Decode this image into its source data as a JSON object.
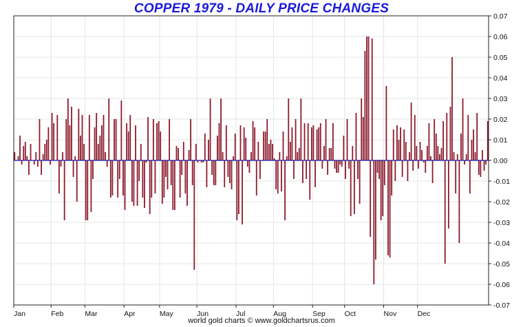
{
  "chart_data": {
    "type": "bar",
    "title": "COPPER 1979 - DAILY PRICE CHANGES",
    "credit": "world gold charts © www.goldchartsrus.com",
    "xlabel": "",
    "ylabel": "",
    "ylim": [
      -0.07,
      0.07
    ],
    "y_ticks": [
      "0.07",
      "0.06",
      "0.05",
      "0.04",
      "0.03",
      "0.02",
      "0.01",
      "0.00",
      "-0.01",
      "-0.02",
      "-0.03",
      "-0.04",
      "-0.05",
      "-0.06",
      "-0.07"
    ],
    "y_tick_values": [
      0.07,
      0.06,
      0.05,
      0.04,
      0.03,
      0.02,
      0.01,
      0.0,
      -0.01,
      -0.02,
      -0.03,
      -0.04,
      -0.05,
      -0.06,
      -0.07
    ],
    "x_ticks": [
      "Jan",
      "Feb",
      "Mar",
      "Apr",
      "May",
      "Jun",
      "Jul",
      "Aug",
      "Sep",
      "Oct",
      "Nov",
      "Dec"
    ],
    "x_tick_positions": [
      0,
      21,
      40,
      62,
      82,
      103,
      125,
      146,
      168,
      186,
      208,
      227
    ],
    "grid": true,
    "colors": {
      "bar": "#8b1a2b",
      "zero_line": "#1a1aa8",
      "title": "#1a1adb",
      "grid": "#e4e4e4"
    },
    "series": [
      {
        "values": [
          0.004,
          0.0,
          0.002,
          0.012,
          -0.002,
          0.007,
          0.009,
          0.002,
          -0.007,
          0.008,
          0.0,
          -0.002,
          0.004,
          -0.003,
          0.02,
          -0.007,
          0.003,
          0.008,
          0.01,
          0.016,
          -0.002,
          0.023,
          0.018,
          0.0,
          0.022,
          -0.016,
          -0.003,
          0.004,
          -0.029,
          0.02,
          0.03,
          0.017,
          0.026,
          -0.008,
          0.002,
          -0.02,
          0.025,
          0.012,
          0.022,
          0.008,
          -0.029,
          -0.029,
          0.022,
          -0.025,
          -0.009,
          0.016,
          0.023,
          0.008,
          0.012,
          0.017,
          0.022,
          0.004,
          -0.003,
          0.03,
          -0.018,
          -0.017,
          0.02,
          0.02,
          -0.018,
          -0.009,
          0.029,
          -0.017,
          -0.024,
          0.018,
          0.014,
          0.022,
          -0.02,
          -0.022,
          0.017,
          -0.022,
          -0.01,
          0.008,
          -0.018,
          -0.023,
          -0.001,
          0.021,
          -0.026,
          -0.018,
          0.02,
          -0.016,
          0.018,
          0.019,
          0.014,
          -0.021,
          -0.018,
          -0.008,
          -0.014,
          0.02,
          -0.012,
          -0.024,
          -0.024,
          0.007,
          0.006,
          -0.018,
          -0.007,
          0.009,
          -0.016,
          -0.022,
          0.005,
          0.02,
          -0.012,
          -0.053,
          0.008,
          -0.001,
          0.0,
          -0.001,
          -0.001,
          0.013,
          -0.013,
          0.01,
          0.03,
          -0.007,
          -0.012,
          -0.012,
          0.012,
          0.018,
          0.03,
          0.004,
          -0.013,
          0.017,
          -0.008,
          -0.011,
          -0.014,
          0.002,
          0.013,
          -0.029,
          -0.026,
          0.017,
          -0.031,
          0.016,
          0.011,
          -0.003,
          -0.006,
          0.004,
          0.019,
          0.016,
          -0.017,
          0.009,
          -0.009,
          0.0,
          0.014,
          0.014,
          0.02,
          0.008,
          0.01,
          0.008,
          0.001,
          -0.014,
          -0.016,
          0.004,
          -0.015,
          0.014,
          -0.029,
          0.002,
          0.03,
          0.009,
          0.016,
          -0.009,
          0.02,
          0.004,
          0.006,
          0.03,
          -0.011,
          0.018,
          -0.009,
          0.018,
          -0.019,
          0.016,
          0.017,
          -0.013,
          0.015,
          0.016,
          0.018,
          -0.004,
          0.007,
          0.02,
          -0.007,
          0.006,
          0.006,
          0.018,
          -0.004,
          -0.006,
          -0.006,
          -0.002,
          -0.003,
          0.012,
          -0.009,
          0.02,
          -0.004,
          -0.027,
          0.007,
          -0.026,
          0.023,
          -0.009,
          -0.021,
          0.03,
          0.021,
          0.053,
          0.06,
          0.06,
          -0.037,
          0.059,
          -0.06,
          -0.048,
          -0.006,
          -0.009,
          -0.029,
          -0.027,
          -0.012,
          0.036,
          -0.046,
          -0.047,
          -0.017,
          0.015,
          -0.01,
          0.017,
          0.01,
          0.016,
          -0.008,
          0.015,
          0.009,
          -0.01,
          0.004,
          0.028,
          -0.005,
          0.022,
          0.007,
          -0.004,
          0.009,
          0.005,
          -0.001,
          -0.006,
          0.007,
          0.018,
          0.002,
          -0.011,
          0.02,
          0.013,
          0.007,
          0.003,
          0.006,
          0.019,
          -0.05,
          0.023,
          -0.033,
          0.026,
          0.05,
          0.004,
          -0.016,
          0.003,
          -0.04,
          0.013,
          0.03,
          -0.002,
          0.003,
          0.022,
          -0.016,
          0.01,
          0.015,
          0.004,
          0.023,
          -0.007,
          -0.008,
          0.005,
          -0.005,
          -0.002,
          0.019
        ]
      }
    ]
  }
}
